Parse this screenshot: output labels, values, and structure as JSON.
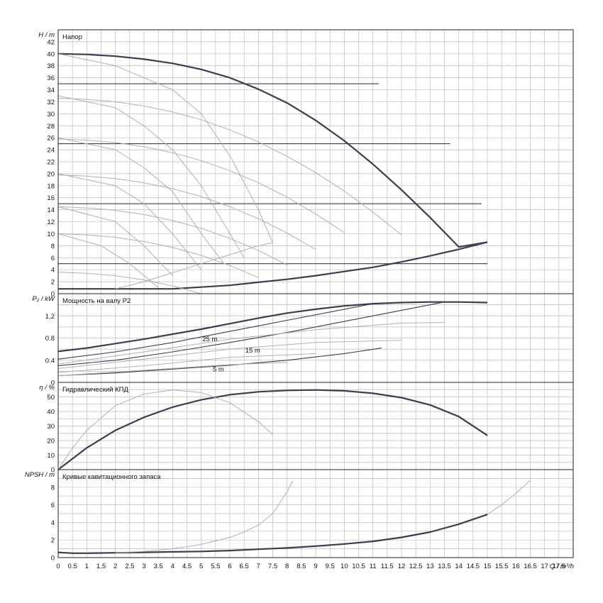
{
  "chart_data": [
    {
      "type": "line",
      "title": "Напор",
      "ylabel": "H / m",
      "xlim": [
        0,
        18
      ],
      "ylim": [
        0,
        44
      ],
      "yticks": [
        0,
        2,
        4,
        6,
        8,
        10,
        12,
        14,
        16,
        18,
        20,
        22,
        24,
        26,
        28,
        30,
        32,
        34,
        36,
        38,
        40,
        42
      ],
      "grid": true,
      "series": [
        {
          "role": "max-curve",
          "x": [
            0,
            1,
            2,
            3,
            4,
            5,
            6,
            7,
            8,
            9,
            10,
            11,
            12,
            13,
            14,
            15
          ],
          "values": [
            40,
            39.9,
            39.6,
            39.1,
            38.4,
            37.4,
            36.0,
            34.1,
            31.8,
            28.9,
            25.5,
            21.6,
            17.3,
            12.7,
            7.8,
            8.6
          ]
        },
        {
          "role": "min-curve",
          "x": [
            0,
            1,
            2,
            3,
            4,
            5,
            6,
            7,
            8,
            9,
            10,
            11,
            12,
            13,
            14,
            15
          ],
          "values": [
            0.8,
            0.8,
            0.8,
            0.8,
            0.8,
            1.1,
            1.4,
            1.9,
            2.4,
            3.0,
            3.7,
            4.4,
            5.3,
            6.3,
            7.4,
            8.6
          ]
        },
        {
          "role": "setpoint-line",
          "x": [
            0,
            11.2
          ],
          "values": [
            35,
            35
          ]
        },
        {
          "role": "setpoint-line",
          "x": [
            0,
            13.7
          ],
          "values": [
            25,
            25
          ]
        },
        {
          "role": "setpoint-line",
          "x": [
            0,
            14.8
          ],
          "values": [
            15,
            15
          ]
        },
        {
          "role": "setpoint-line",
          "x": [
            0,
            15
          ],
          "values": [
            5,
            5
          ]
        },
        {
          "role": "speed-curve",
          "x": [
            0,
            1,
            2,
            3,
            4,
            5,
            6,
            7,
            8,
            9,
            10,
            11,
            12
          ],
          "values": [
            32.6,
            32.4,
            32.0,
            31.3,
            30.3,
            29.0,
            27.3,
            25.3,
            22.9,
            20.2,
            17.1,
            13.6,
            9.8
          ]
        },
        {
          "role": "speed-curve",
          "x": [
            0,
            1,
            2,
            3,
            4,
            5,
            6,
            7,
            8,
            9,
            10
          ],
          "values": [
            25.8,
            25.6,
            25.2,
            24.5,
            23.5,
            22.2,
            20.5,
            18.5,
            16.1,
            13.3,
            10.2
          ]
        },
        {
          "role": "speed-curve",
          "x": [
            0,
            1,
            2,
            3,
            4,
            5,
            6,
            7,
            8,
            9
          ],
          "values": [
            19.8,
            19.6,
            19.2,
            18.5,
            17.5,
            16.2,
            14.5,
            12.5,
            10.1,
            7.4
          ]
        },
        {
          "role": "speed-curve",
          "x": [
            0,
            1,
            2,
            3,
            4,
            5,
            6,
            7,
            8
          ],
          "values": [
            14.5,
            14.3,
            13.9,
            13.2,
            12.2,
            10.9,
            9.2,
            7.2,
            4.8
          ]
        },
        {
          "role": "speed-curve",
          "x": [
            0,
            1,
            2,
            3,
            4,
            5,
            6,
            7
          ],
          "values": [
            10.0,
            9.8,
            9.4,
            8.7,
            7.7,
            6.4,
            4.7,
            2.7
          ]
        },
        {
          "role": "speed-curve",
          "x": [
            0,
            1,
            2,
            3,
            4,
            5
          ],
          "values": [
            3.6,
            3.4,
            3.0,
            2.3,
            1.3,
            0
          ]
        },
        {
          "role": "cross-curve",
          "x": [
            0,
            2,
            4,
            5,
            6,
            7,
            7.5
          ],
          "values": [
            40,
            38,
            34,
            30,
            23,
            14,
            8.5
          ]
        },
        {
          "role": "cross-curve",
          "x": [
            0,
            2,
            3,
            4,
            5,
            6,
            6.5
          ],
          "values": [
            33,
            31,
            28,
            24,
            18,
            10,
            6
          ]
        },
        {
          "role": "cross-curve",
          "x": [
            0,
            2,
            3,
            4,
            5,
            5.8
          ],
          "values": [
            26,
            24,
            21,
            17,
            10,
            5
          ]
        },
        {
          "role": "cross-curve",
          "x": [
            0,
            2,
            3,
            4,
            5
          ],
          "values": [
            20,
            18,
            15,
            10,
            4
          ]
        },
        {
          "role": "cross-curve",
          "x": [
            0,
            2,
            3,
            4
          ],
          "values": [
            14.5,
            12,
            8,
            3
          ]
        },
        {
          "role": "cross-curve",
          "x": [
            0,
            1.5,
            2.5,
            3.5
          ],
          "values": [
            10,
            8,
            5,
            1
          ]
        },
        {
          "role": "efficiency-curve",
          "x": [
            2,
            3,
            4,
            5,
            6,
            7,
            7.5
          ],
          "values": [
            0.8,
            2,
            3.5,
            5,
            6.5,
            8,
            8.5
          ]
        }
      ]
    },
    {
      "type": "line",
      "title": "Мощность на валу P2",
      "ylabel": "P₂ / kW",
      "xlim": [
        0,
        18
      ],
      "ylim": [
        0,
        1.6
      ],
      "yticks": [
        0,
        0.4,
        0.8,
        1.2
      ],
      "ytick_labels": [
        "0",
        "0.4",
        "0.8",
        "1.2"
      ],
      "grid": true,
      "annotations": [
        "25 m",
        "15 m",
        "5 m"
      ],
      "series": [
        {
          "role": "max-curve",
          "x": [
            0,
            1,
            2,
            3,
            4,
            5,
            6,
            7,
            8,
            9,
            10,
            11,
            12,
            13,
            14,
            15
          ],
          "values": [
            0.56,
            0.62,
            0.7,
            0.78,
            0.87,
            0.96,
            1.06,
            1.16,
            1.25,
            1.32,
            1.38,
            1.42,
            1.44,
            1.45,
            1.45,
            1.44
          ]
        },
        {
          "role": "setpoint-curve",
          "x": [
            0,
            2,
            4,
            6,
            8,
            10,
            11
          ],
          "values": [
            0.42,
            0.55,
            0.72,
            0.92,
            1.12,
            1.32,
            1.42
          ]
        },
        {
          "role": "setpoint-curve",
          "x": [
            0,
            2,
            4,
            6,
            8,
            10,
            12,
            13.5
          ],
          "values": [
            0.3,
            0.4,
            0.55,
            0.72,
            0.9,
            1.1,
            1.3,
            1.45
          ]
        },
        {
          "role": "setpoint-curve",
          "x": [
            0,
            2,
            4,
            6,
            8,
            10,
            11.3
          ],
          "values": [
            0.12,
            0.17,
            0.24,
            0.31,
            0.4,
            0.52,
            0.62
          ]
        },
        {
          "role": "grey-curve",
          "x": [
            0,
            3,
            6,
            9,
            12,
            13.5
          ],
          "values": [
            0.33,
            0.55,
            0.78,
            0.95,
            1.07,
            1.08
          ]
        },
        {
          "role": "grey-curve",
          "x": [
            0,
            3,
            6,
            9,
            12
          ],
          "values": [
            0.25,
            0.42,
            0.6,
            0.72,
            0.76
          ]
        },
        {
          "role": "grey-curve",
          "x": [
            0,
            3,
            6,
            9
          ],
          "values": [
            0.18,
            0.3,
            0.45,
            0.52
          ]
        },
        {
          "role": "grey-curve",
          "x": [
            0,
            3,
            6,
            8
          ],
          "values": [
            0.12,
            0.22,
            0.32,
            0.36
          ]
        }
      ]
    },
    {
      "type": "line",
      "title": "Гидравлический КПД",
      "ylabel": "η / %",
      "xlim": [
        0,
        18
      ],
      "ylim": [
        0,
        60
      ],
      "yticks": [
        0,
        10,
        20,
        30,
        40,
        50
      ],
      "grid": true,
      "series": [
        {
          "role": "max-curve",
          "x": [
            0,
            1,
            2,
            3,
            4,
            5,
            6,
            7,
            8,
            9,
            10,
            11,
            12,
            13,
            14,
            15
          ],
          "values": [
            0,
            15,
            27,
            36,
            43,
            48,
            51.5,
            53.5,
            54.5,
            54.8,
            54.2,
            52.5,
            49.5,
            44.5,
            36.5,
            23.5
          ]
        },
        {
          "role": "grey-curve",
          "x": [
            0,
            0.5,
            1,
            2,
            3,
            4,
            5,
            6,
            7,
            7.5
          ],
          "values": [
            0,
            15,
            27,
            44,
            52,
            54.8,
            53,
            46,
            33,
            24
          ]
        }
      ]
    },
    {
      "type": "line",
      "title": "Кривые кавитационного запаса",
      "ylabel": "NPSH / m",
      "xlabel": "Q / m³/h",
      "xlim": [
        0,
        18
      ],
      "ylim": [
        0,
        10
      ],
      "yticks": [
        0,
        2,
        4,
        6,
        8
      ],
      "xticks": [
        "0",
        "0.5",
        "1",
        "1.5",
        "2",
        "2.5",
        "3",
        "3.5",
        "4",
        "4.5",
        "5",
        "5.5",
        "6",
        "6.5",
        "7",
        "7.5",
        "8",
        "8.5",
        "9",
        "9.5",
        "10",
        "10.5",
        "11",
        "11.5",
        "12",
        "12.5",
        "13",
        "13.5",
        "14",
        "14.5",
        "15",
        "15.5",
        "16",
        "16.5",
        "17",
        "17.5"
      ],
      "grid": true,
      "series": [
        {
          "role": "max-curve",
          "x": [
            0,
            0.5,
            1,
            2,
            3,
            4,
            5,
            6,
            7,
            8,
            9,
            10,
            11,
            12,
            13,
            14,
            15
          ],
          "values": [
            0.6,
            0.5,
            0.5,
            0.55,
            0.6,
            0.65,
            0.7,
            0.8,
            0.95,
            1.1,
            1.3,
            1.55,
            1.85,
            2.3,
            2.9,
            3.8,
            4.9
          ]
        },
        {
          "role": "grey-curve",
          "x": [
            15,
            15.5,
            16,
            16.5
          ],
          "values": [
            4.9,
            6.0,
            7.3,
            8.8
          ]
        },
        {
          "role": "grey-curve",
          "x": [
            2,
            3,
            4,
            5,
            6,
            6.5,
            7,
            7.5,
            8,
            8.2
          ],
          "values": [
            0.55,
            0.7,
            1.0,
            1.5,
            2.3,
            2.9,
            3.7,
            5.0,
            7.5,
            8.7
          ]
        }
      ]
    }
  ]
}
